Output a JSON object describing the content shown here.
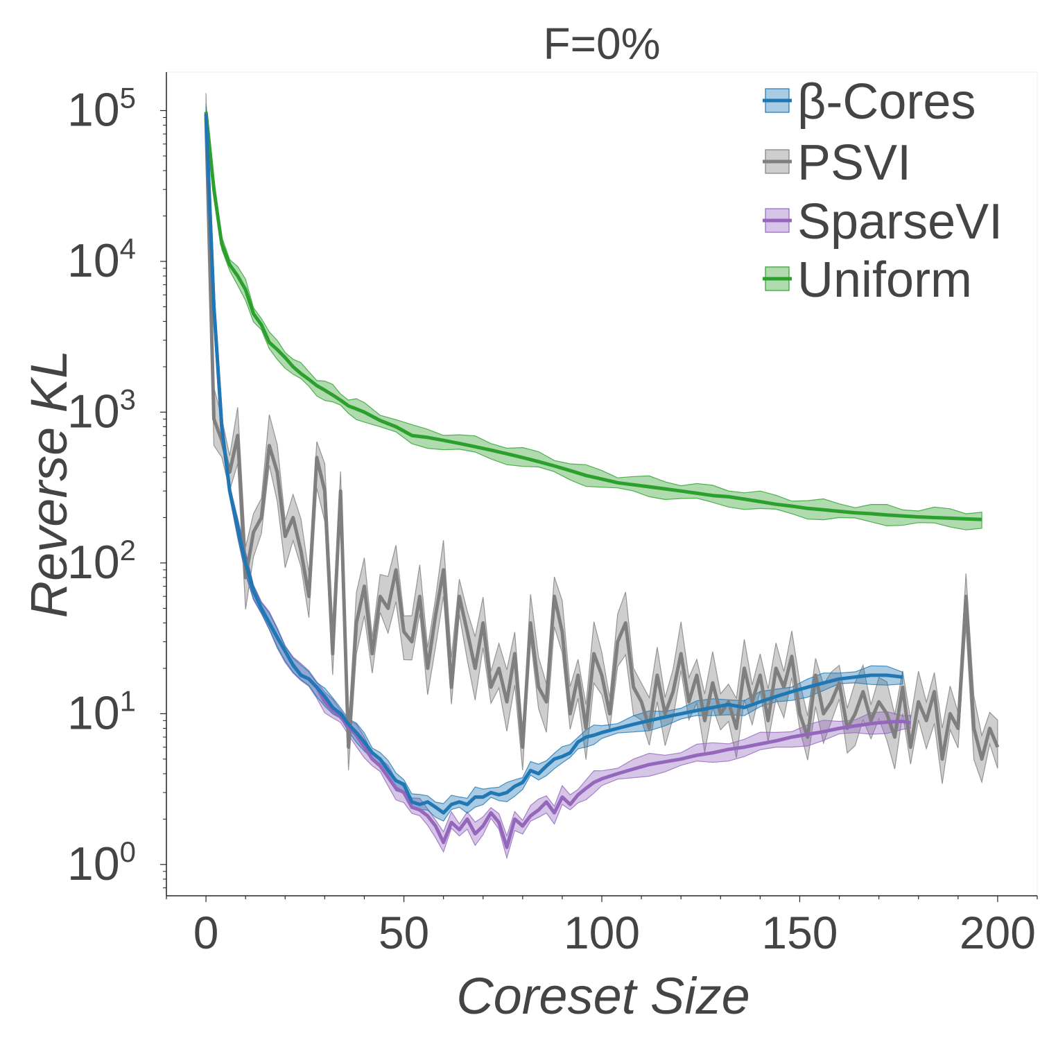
{
  "chart_data": {
    "type": "line",
    "title": "F=0%",
    "xlabel": "Coreset Size",
    "ylabel": "Reverse KL",
    "yscale": "log",
    "xlim": [
      -10,
      210
    ],
    "ylim": [
      0.62,
      180000
    ],
    "xticks": [
      0,
      50,
      100,
      150,
      200
    ],
    "xtick_labels": [
      "0",
      "50",
      "100",
      "150",
      "200"
    ],
    "yticks": [
      1,
      10,
      100,
      1000,
      10000,
      100000
    ],
    "ytick_labels": [
      {
        "base": "10",
        "exp": "0"
      },
      {
        "base": "10",
        "exp": "1"
      },
      {
        "base": "10",
        "exp": "2"
      },
      {
        "base": "10",
        "exp": "3"
      },
      {
        "base": "10",
        "exp": "4"
      },
      {
        "base": "10",
        "exp": "5"
      }
    ],
    "grid": false,
    "legend_position": "top-right",
    "series": [
      {
        "name": "β-Cores",
        "color": "#1f77b4",
        "x": [
          0,
          2,
          4,
          6,
          8,
          10,
          12,
          14,
          16,
          18,
          20,
          22,
          24,
          26,
          28,
          30,
          32,
          34,
          36,
          38,
          40,
          42,
          44,
          46,
          48,
          50,
          52,
          54,
          56,
          58,
          60,
          62,
          64,
          66,
          68,
          70,
          72,
          74,
          76,
          78,
          80,
          82,
          84,
          86,
          88,
          90,
          92,
          94,
          96,
          98,
          100,
          104,
          108,
          112,
          116,
          120,
          124,
          128,
          132,
          136,
          140,
          144,
          148,
          152,
          156,
          160,
          164,
          168,
          172,
          176
        ],
        "y": [
          95000,
          5000,
          800,
          300,
          170,
          100,
          65,
          50,
          40,
          32,
          26,
          21,
          18,
          17,
          15,
          13,
          11,
          10,
          8.5,
          7.5,
          6.5,
          5.5,
          5,
          4.2,
          3.6,
          3.4,
          2.6,
          2.5,
          2.6,
          2.4,
          2.2,
          2.5,
          2.6,
          2.5,
          2.8,
          2.8,
          3.0,
          2.9,
          3.0,
          3.3,
          3.5,
          4.2,
          4.0,
          4.5,
          5.0,
          5.2,
          5.5,
          6.5,
          7.0,
          7.2,
          7.5,
          8.0,
          8.5,
          9.0,
          9.5,
          10,
          10.5,
          11,
          11.5,
          11,
          12,
          13,
          14,
          15,
          16,
          17,
          17.5,
          18,
          18,
          17.5
        ],
        "band_fraction": 0.12
      },
      {
        "name": "PSVI",
        "color": "#7f7f7f",
        "x": [
          0,
          2,
          4,
          6,
          8,
          10,
          12,
          14,
          16,
          18,
          20,
          22,
          24,
          26,
          28,
          30,
          32,
          34,
          36,
          38,
          40,
          42,
          44,
          46,
          48,
          50,
          52,
          54,
          56,
          58,
          60,
          62,
          64,
          66,
          68,
          70,
          72,
          74,
          76,
          78,
          80,
          82,
          84,
          86,
          88,
          90,
          92,
          94,
          96,
          98,
          100,
          102,
          104,
          106,
          108,
          110,
          112,
          114,
          116,
          118,
          120,
          122,
          124,
          126,
          128,
          130,
          132,
          134,
          136,
          138,
          140,
          142,
          144,
          146,
          148,
          150,
          152,
          154,
          156,
          158,
          160,
          162,
          164,
          166,
          168,
          170,
          172,
          174,
          176,
          178,
          180,
          182,
          184,
          186,
          188,
          190,
          192,
          194,
          196,
          198,
          200
        ],
        "y": [
          90000,
          900,
          650,
          400,
          700,
          80,
          160,
          200,
          600,
          400,
          150,
          200,
          120,
          60,
          500,
          300,
          25,
          300,
          6,
          40,
          70,
          25,
          60,
          50,
          90,
          35,
          30,
          60,
          20,
          45,
          90,
          15,
          60,
          35,
          20,
          40,
          15,
          20,
          12,
          25,
          6,
          40,
          15,
          12,
          60,
          35,
          10,
          18,
          8,
          25,
          18,
          10,
          30,
          40,
          15,
          12,
          8,
          18,
          10,
          14,
          25,
          12,
          18,
          9,
          16,
          10,
          12,
          8,
          20,
          12,
          18,
          9,
          20,
          15,
          24,
          10,
          7,
          18,
          10,
          12,
          16,
          8,
          10,
          14,
          9,
          12,
          10,
          7,
          15,
          6,
          12,
          9,
          14,
          5,
          10,
          8,
          60,
          8,
          5,
          8,
          6
        ],
        "band_fraction": 0.45
      },
      {
        "name": "SparseVI",
        "color": "#9467bd",
        "x": [
          0,
          2,
          4,
          6,
          8,
          10,
          12,
          14,
          16,
          18,
          20,
          22,
          24,
          26,
          28,
          30,
          32,
          34,
          36,
          38,
          40,
          42,
          44,
          46,
          48,
          50,
          52,
          54,
          56,
          58,
          60,
          62,
          64,
          66,
          68,
          70,
          72,
          74,
          76,
          78,
          80,
          82,
          84,
          86,
          88,
          90,
          92,
          94,
          96,
          98,
          100,
          104,
          108,
          112,
          116,
          120,
          124,
          128,
          132,
          136,
          140,
          144,
          148,
          152,
          156,
          160,
          164,
          168,
          172,
          176,
          178
        ],
        "y": [
          95000,
          5000,
          800,
          300,
          170,
          100,
          65,
          50,
          40,
          32,
          26,
          21,
          18,
          17,
          15,
          12,
          10.5,
          9.5,
          8.2,
          7.2,
          6.0,
          5.0,
          4.5,
          3.8,
          3.2,
          3.0,
          2.4,
          2.3,
          2.1,
          1.8,
          1.4,
          1.9,
          1.7,
          2.0,
          1.6,
          1.8,
          2.2,
          1.9,
          1.3,
          2.0,
          1.8,
          2.1,
          2.3,
          2.6,
          2.2,
          2.8,
          2.5,
          2.9,
          3.2,
          3.5,
          3.7,
          4.0,
          4.3,
          4.6,
          4.8,
          5.0,
          5.3,
          5.5,
          5.8,
          6.0,
          6.3,
          6.6,
          7.0,
          7.3,
          7.6,
          8.0,
          8.3,
          8.6,
          8.8,
          8.9,
          8.7
        ],
        "band_fraction": 0.14
      },
      {
        "name": "Uniform",
        "color": "#2ca02c",
        "x": [
          0,
          2,
          4,
          6,
          8,
          10,
          12,
          14,
          16,
          18,
          20,
          22,
          24,
          26,
          28,
          30,
          32,
          34,
          36,
          38,
          40,
          44,
          48,
          52,
          56,
          60,
          64,
          68,
          72,
          76,
          80,
          84,
          88,
          92,
          96,
          100,
          104,
          108,
          112,
          116,
          120,
          124,
          128,
          132,
          136,
          140,
          144,
          148,
          152,
          156,
          160,
          164,
          168,
          172,
          176,
          180,
          184,
          188,
          192,
          196
        ],
        "y": [
          98000,
          30000,
          13000,
          9500,
          8000,
          6500,
          4500,
          3800,
          2900,
          2600,
          2300,
          2000,
          1800,
          1650,
          1500,
          1400,
          1300,
          1200,
          1100,
          1050,
          1000,
          880,
          800,
          700,
          680,
          650,
          620,
          590,
          560,
          530,
          500,
          470,
          440,
          410,
          380,
          360,
          340,
          330,
          320,
          310,
          300,
          290,
          280,
          275,
          265,
          255,
          245,
          238,
          230,
          225,
          220,
          215,
          212,
          208,
          205,
          202,
          200,
          198,
          196,
          194
        ],
        "band_fraction": 0.13
      }
    ]
  }
}
